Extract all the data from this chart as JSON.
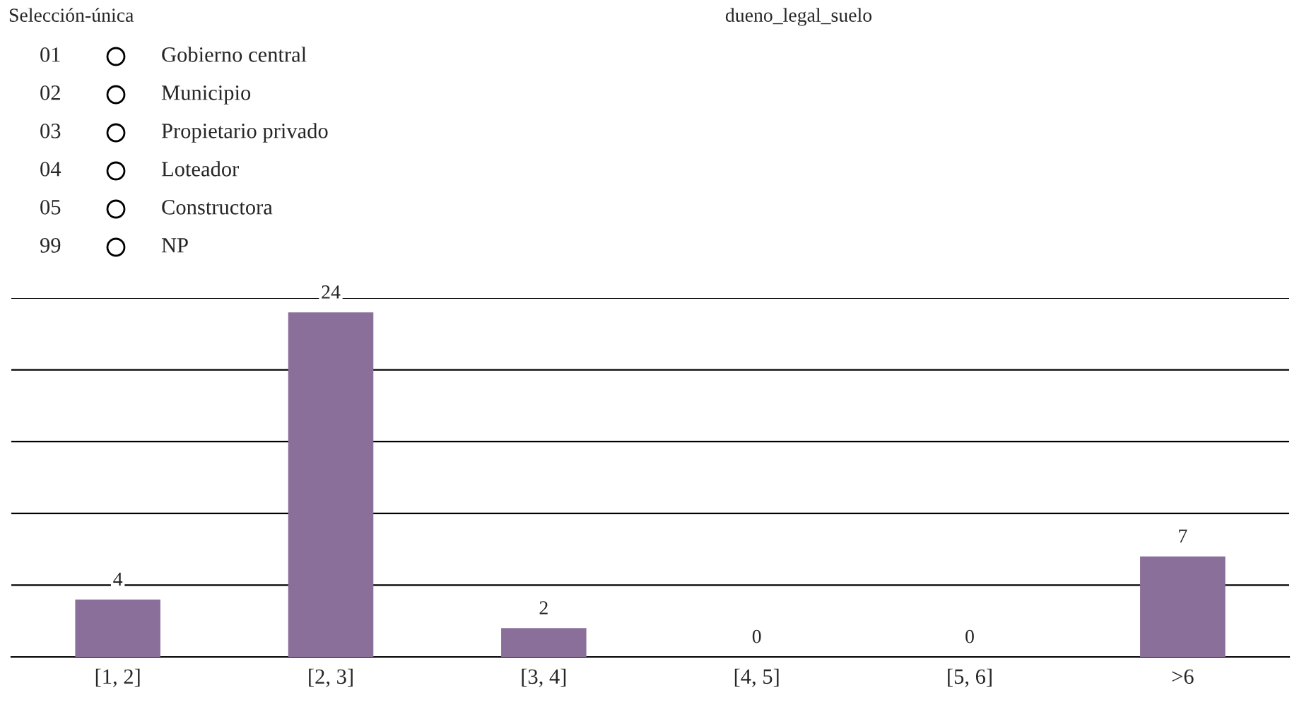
{
  "chart_data": {
    "type": "bar",
    "title": "dueno_legal_suelo",
    "subtitle": "Selección-única",
    "annotations": [
      "01",
      "Gobierno central",
      "02",
      "Municipio",
      "03",
      "Propietario privado",
      "04",
      "Loteador",
      "05",
      "Constructora",
      "99",
      "NP"
    ],
    "categories": [
      "[1, 2]",
      "[2, 3]",
      "[3, 4]",
      "[4, 5]",
      "[5, 6]",
      ">6"
    ],
    "values": [
      4,
      24,
      2,
      0,
      0,
      7
    ],
    "color": "#8a6f9b",
    "data_labels": true,
    "ylim": [
      0,
      25
    ],
    "yticks": [
      {
        "value": 0,
        "label": null
      },
      {
        "value": 5,
        "label": null
      },
      {
        "value": 10,
        "label": null
      },
      {
        "value": 15,
        "label": null
      },
      {
        "value": 20,
        "label": null
      },
      {
        "value": 25,
        "label": null
      }
    ],
    "tick_labels": "x",
    "grid": "y"
  }
}
